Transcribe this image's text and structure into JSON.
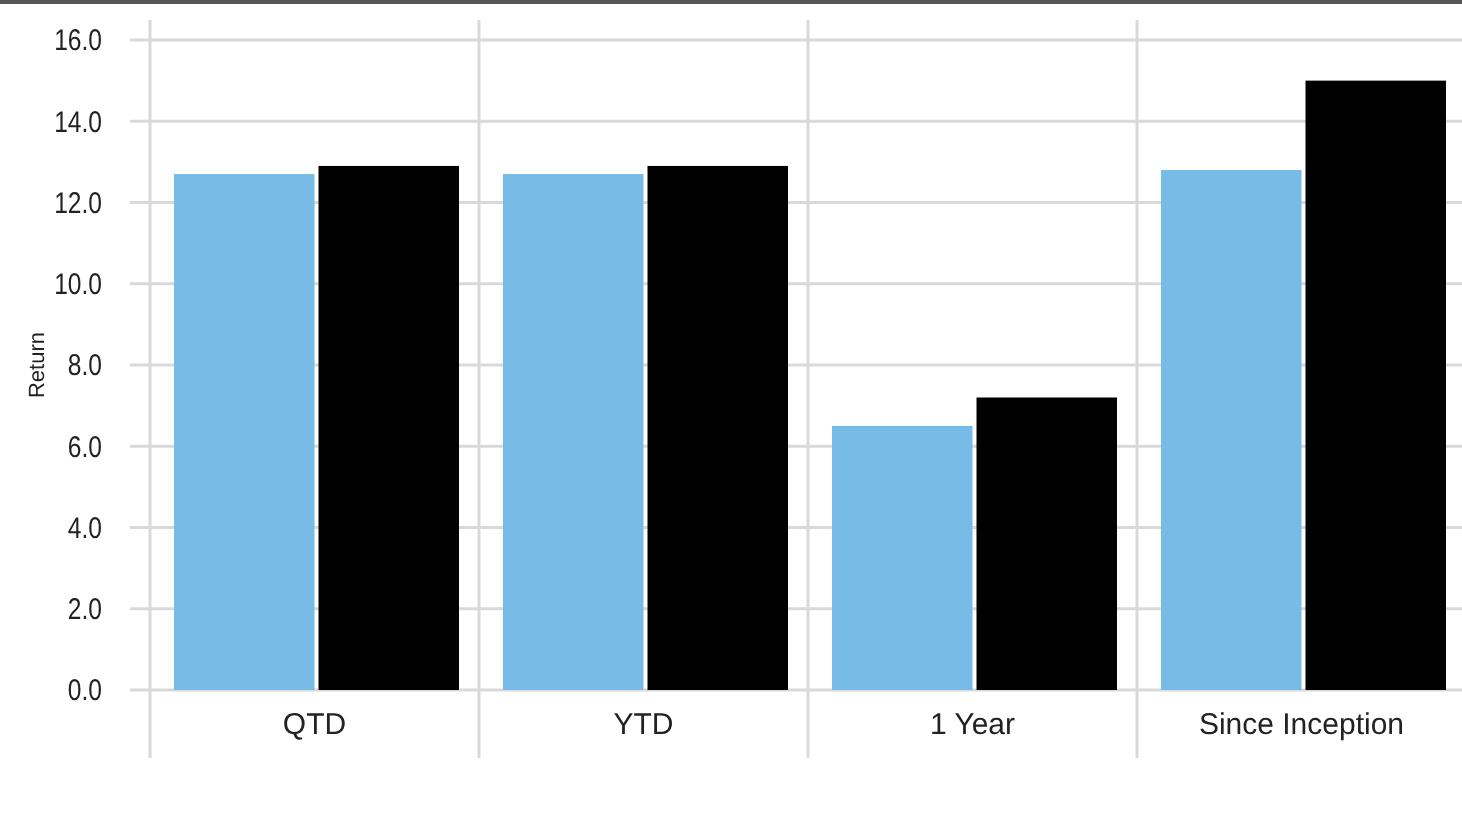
{
  "chart_data": {
    "type": "bar",
    "ylabel": "Return",
    "categories": [
      "QTD",
      "YTD",
      "1 Year",
      "Since Inception"
    ],
    "series": [
      {
        "color": "#77bce6",
        "values": [
          12.7,
          12.7,
          6.5,
          12.8
        ]
      },
      {
        "color": "#000000",
        "values": [
          12.9,
          12.9,
          7.2,
          15.0
        ]
      }
    ],
    "ylim": [
      0,
      16
    ],
    "yticks": [
      {
        "value": 0,
        "label": "0.0"
      },
      {
        "value": 2,
        "label": "2.0"
      },
      {
        "value": 4,
        "label": "4.0"
      },
      {
        "value": 6,
        "label": "6.0"
      },
      {
        "value": 8,
        "label": "8.0"
      },
      {
        "value": 10,
        "label": "10.0"
      },
      {
        "value": 12,
        "label": "12.0"
      },
      {
        "value": 14,
        "label": "14.0"
      },
      {
        "value": 16,
        "label": "16.0"
      }
    ],
    "grid": true
  }
}
